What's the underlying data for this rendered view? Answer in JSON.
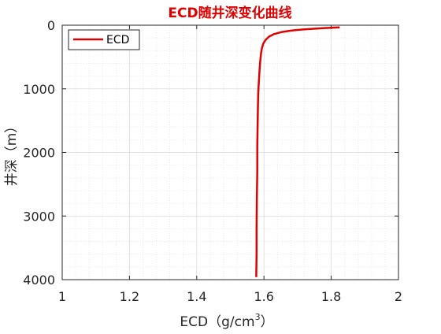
{
  "chart_data": {
    "type": "line",
    "title": "ECD随井深变化曲线",
    "title_color": "#e00000",
    "xlabel_main": "ECD（g/cm",
    "xlabel_sup": "3",
    "xlabel_end": "）",
    "ylabel": "井深（m）",
    "xlim": [
      1,
      2
    ],
    "ylim": [
      0,
      4000
    ],
    "y_reversed": true,
    "x_ticks": [
      "1",
      "1.2",
      "1.4",
      "1.6",
      "1.8",
      "2"
    ],
    "y_ticks": [
      "0",
      "1000",
      "2000",
      "3000",
      "4000"
    ],
    "grid": true,
    "minor_grid": true,
    "legend_position": "top-left",
    "series": [
      {
        "name": "ECD",
        "color": "#e00000",
        "x": [
          1.825,
          1.78,
          1.72,
          1.68,
          1.65,
          1.63,
          1.615,
          1.605,
          1.598,
          1.594,
          1.591,
          1.589,
          1.587,
          1.585,
          1.583,
          1.582,
          1.581,
          1.58,
          1.58,
          1.579,
          1.578,
          1.578,
          1.577
        ],
        "y": [
          35,
          45,
          65,
          85,
          110,
          140,
          180,
          230,
          290,
          360,
          450,
          560,
          700,
          870,
          1070,
          1300,
          1600,
          1900,
          2300,
          2700,
          3200,
          3600,
          3960
        ]
      }
    ]
  }
}
